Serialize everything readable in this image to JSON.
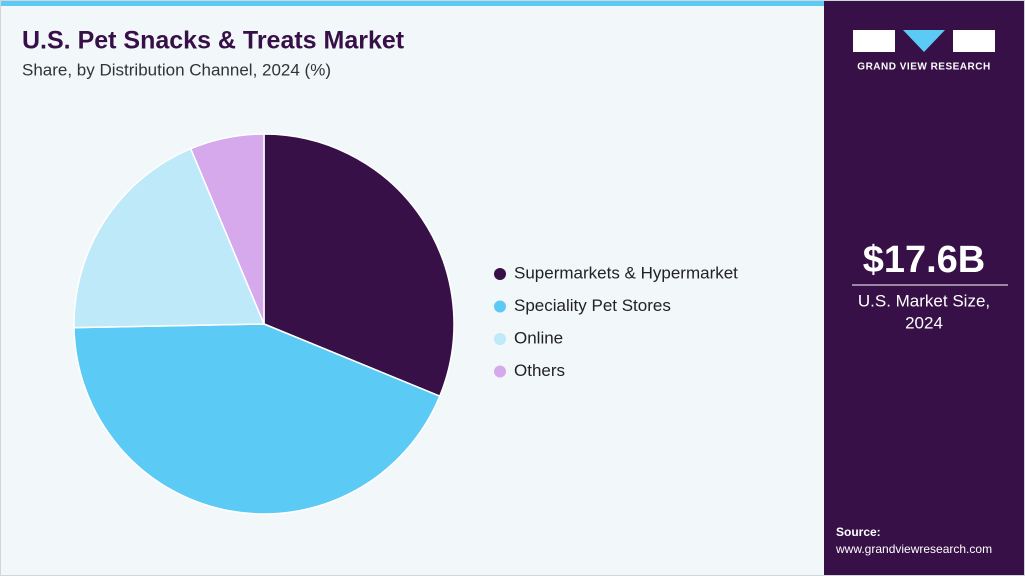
{
  "chart_data": {
    "type": "pie",
    "title": "U.S. Pet Snacks & Treats Market",
    "subtitle": "Share, by Distribution Channel, 2024 (%)",
    "categories": [
      "Supermarkets & Hypermarket",
      "Speciality Pet Stores",
      "Online",
      "Others"
    ],
    "values": [
      31.2,
      43.5,
      19.0,
      6.3
    ],
    "colors": [
      "#371047",
      "#5bcbf5",
      "#bee9f8",
      "#d5a9ec"
    ],
    "legend": "right"
  },
  "sidebar": {
    "brand": "GRAND VIEW RESEARCH",
    "market_size": "$17.6B",
    "market_label": [
      "U.S. Market Size,",
      "2024"
    ],
    "source_label": "Source:",
    "source_url": "www.grandviewresearch.com"
  }
}
